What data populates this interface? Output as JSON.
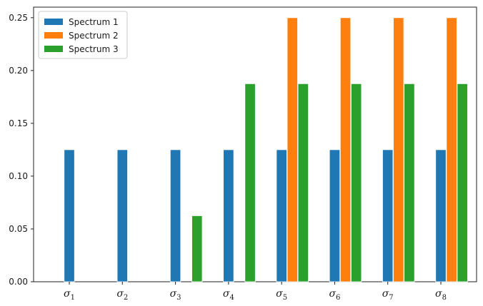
{
  "chart_data": {
    "type": "bar",
    "title": "",
    "xlabel": "",
    "ylabel": "",
    "categories": [
      {
        "base": "σ",
        "sub": "1"
      },
      {
        "base": "σ",
        "sub": "2"
      },
      {
        "base": "σ",
        "sub": "3"
      },
      {
        "base": "σ",
        "sub": "4"
      },
      {
        "base": "σ",
        "sub": "5"
      },
      {
        "base": "σ",
        "sub": "6"
      },
      {
        "base": "σ",
        "sub": "7"
      },
      {
        "base": "σ",
        "sub": "8"
      }
    ],
    "series": [
      {
        "name": "Spectrum 1",
        "color": "#1f77b4",
        "values": [
          0.125,
          0.125,
          0.125,
          0.125,
          0.125,
          0.125,
          0.125,
          0.125
        ]
      },
      {
        "name": "Spectrum 2",
        "color": "#ff7f0e",
        "values": [
          0,
          0,
          0,
          0,
          0.25,
          0.25,
          0.25,
          0.25
        ]
      },
      {
        "name": "Spectrum 3",
        "color": "#2ca02c",
        "values": [
          0,
          0,
          0.0625,
          0.1875,
          0.1875,
          0.1875,
          0.1875,
          0.1875
        ]
      }
    ],
    "ylim": [
      0,
      0.26
    ],
    "yticks": [
      "0.00",
      "0.05",
      "0.10",
      "0.15",
      "0.20",
      "0.25"
    ],
    "ytick_values": [
      0,
      0.05,
      0.1,
      0.15,
      0.2,
      0.25
    ],
    "legend_position": "top-left",
    "grid": false
  }
}
